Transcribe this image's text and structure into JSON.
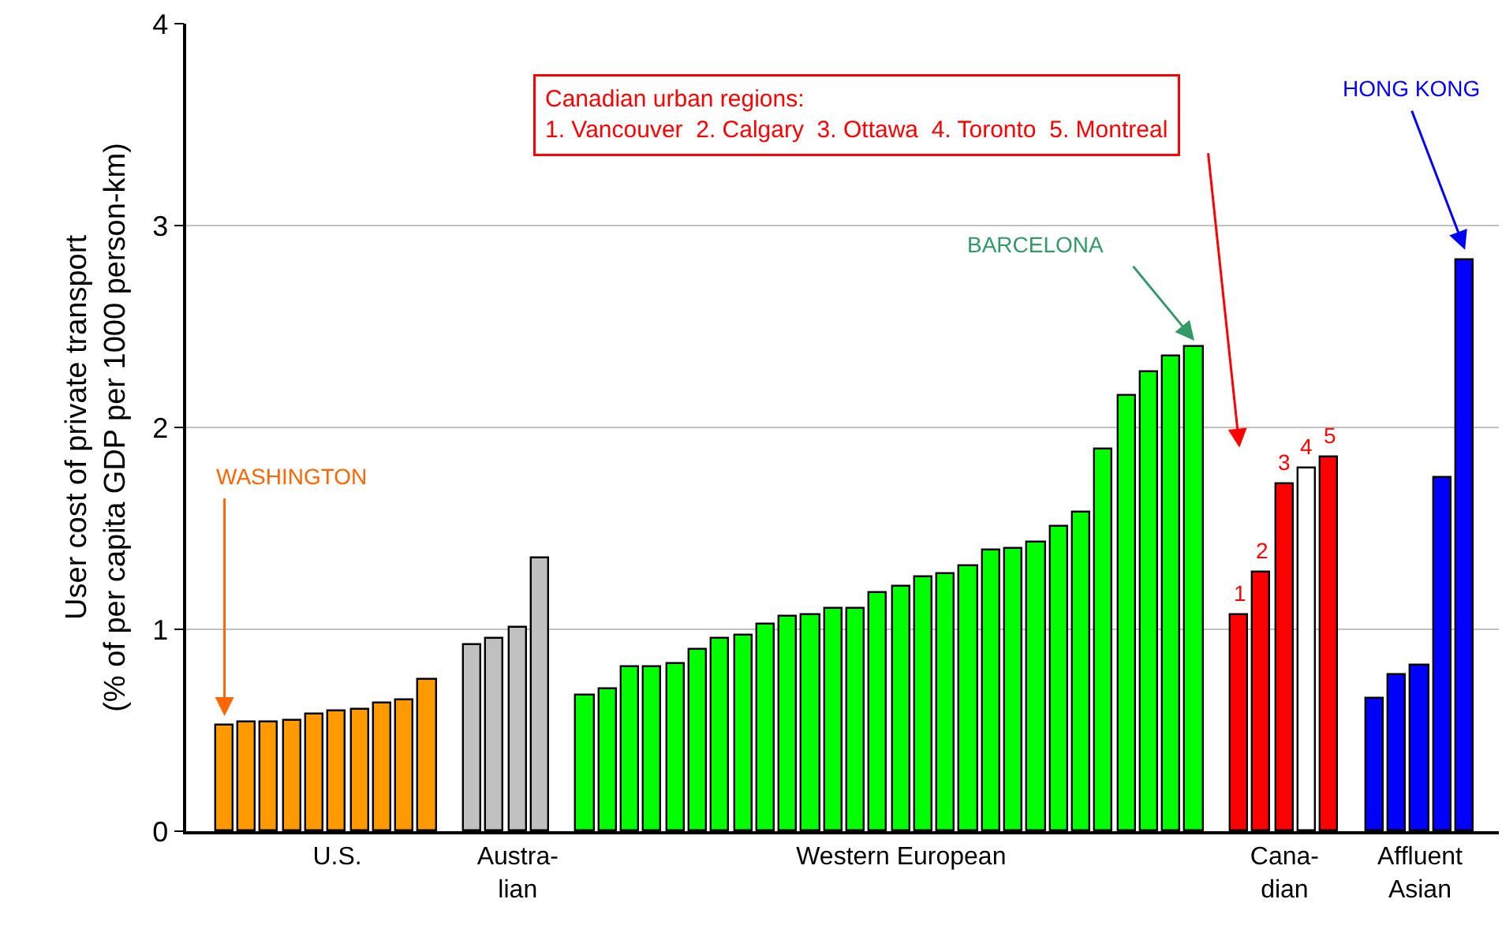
{
  "chart_data": {
    "type": "bar",
    "ylabel": "User cost of private transport\n(% of per capita GDP per 1000 person-km)",
    "categories": [
      null,
      null,
      null,
      null,
      null,
      "U.S.",
      null,
      null,
      null,
      null,
      null,
      null,
      null,
      "Austra-\nlian",
      null,
      null,
      null,
      null,
      null,
      null,
      null,
      null,
      null,
      null,
      null,
      null,
      null,
      null,
      null,
      null,
      "Western European",
      null,
      null,
      null,
      null,
      null,
      null,
      null,
      null,
      null,
      null,
      null,
      null,
      null,
      null,
      null,
      null,
      "Cana-\ndian",
      null,
      null,
      null,
      null,
      null,
      "Affluent\nAsian",
      null,
      null
    ],
    "values": [
      0.52,
      0.54,
      0.54,
      0.55,
      0.58,
      0.59,
      0.6,
      0.63,
      0.65,
      0.75,
      null,
      0.92,
      0.95,
      1.01,
      1.35,
      null,
      0.67,
      0.7,
      0.81,
      0.81,
      0.83,
      0.9,
      0.95,
      0.97,
      1.02,
      1.06,
      1.07,
      1.1,
      1.1,
      1.18,
      1.21,
      1.26,
      1.27,
      1.31,
      1.39,
      1.4,
      1.43,
      1.51,
      1.58,
      1.89,
      2.16,
      2.27,
      2.35,
      2.4,
      null,
      1.07,
      1.28,
      1.72,
      1.8,
      1.85,
      null,
      0.66,
      0.77,
      0.82,
      1.75,
      2.83
    ],
    "colors": [
      "#ff9900",
      "#ff9900",
      "#ff9900",
      "#ff9900",
      "#ff9900",
      "#ff9900",
      "#ff9900",
      "#ff9900",
      "#ff9900",
      "#ff9900",
      null,
      "#c0c0c0",
      "#c0c0c0",
      "#c0c0c0",
      "#c0c0c0",
      null,
      "#00ff00",
      "#00ff00",
      "#00ff00",
      "#00ff00",
      "#00ff00",
      "#00ff00",
      "#00ff00",
      "#00ff00",
      "#00ff00",
      "#00ff00",
      "#00ff00",
      "#00ff00",
      "#00ff00",
      "#00ff00",
      "#00ff00",
      "#00ff00",
      "#00ff00",
      "#00ff00",
      "#00ff00",
      "#00ff00",
      "#00ff00",
      "#00ff00",
      "#00ff00",
      "#00ff00",
      "#00ff00",
      "#00ff00",
      "#00ff00",
      "#00ff00",
      null,
      "#ff0000",
      "#ff0000",
      "#ff0000",
      "#ffffff",
      "#ff0000",
      null,
      "#0000ff",
      "#0000ff",
      "#0000ff",
      "#0000ff",
      "#0000ff"
    ],
    "ylim": [
      0,
      4
    ],
    "yticks": [
      0,
      1,
      2,
      3,
      4
    ],
    "grid": "y",
    "legend": false,
    "annotations": [
      "WASHINGTON",
      "BARCELONA",
      "Canadian urban regions:\n1. Vancouver  2. Calgary  3. Ottawa  4. Toronto  5. Montreal",
      "HONG KONG",
      "1",
      "2",
      "3",
      "4",
      "5"
    ]
  }
}
